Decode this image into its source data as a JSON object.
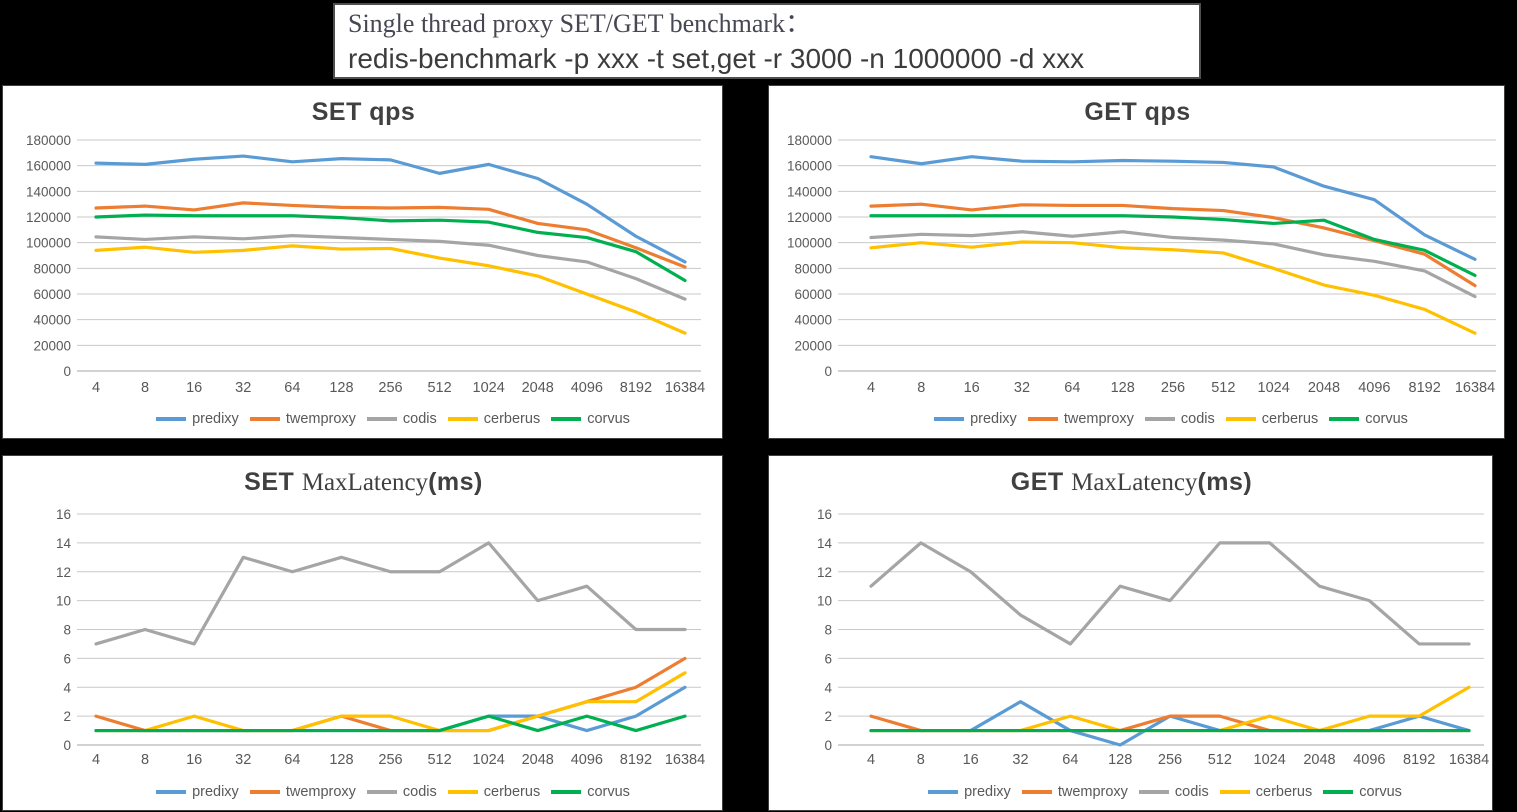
{
  "header": {
    "line1": "Single thread proxy SET/GET benchmark：",
    "line2": "redis-benchmark -p xxx -t set,get -r 3000 -n 1000000 -d xxx"
  },
  "colors": {
    "predixy": "#5B9BD5",
    "twemproxy": "#ED7D31",
    "codis": "#A5A5A5",
    "cerberus": "#FFC000",
    "corvus": "#00B050",
    "grid": "#C9C9C9",
    "axis": "#A6A6A6",
    "axis_text": "#595959",
    "title_text": "#404040"
  },
  "legend_labels": [
    "predixy",
    "twemproxy",
    "codis",
    "cerberus",
    "corvus"
  ],
  "categories": [
    "4",
    "8",
    "16",
    "32",
    "64",
    "128",
    "256",
    "512",
    "1024",
    "2048",
    "4096",
    "8192",
    "16384"
  ],
  "chart_data": [
    {
      "id": "set-qps",
      "type": "line",
      "title_parts": [
        {
          "text": "SET  qps",
          "font": "sans-bold"
        }
      ],
      "xlabel": "",
      "ylabel": "",
      "ylim": [
        0,
        180000
      ],
      "ytick": 20000,
      "grid": true,
      "legend_position": "bottom",
      "categories": [
        "4",
        "8",
        "16",
        "32",
        "64",
        "128",
        "256",
        "512",
        "1024",
        "2048",
        "4096",
        "8192",
        "16384"
      ],
      "series": [
        {
          "name": "predixy",
          "values": [
            162000,
            161000,
            165000,
            167500,
            163000,
            165500,
            164500,
            154000,
            161000,
            150000,
            130000,
            105000,
            85000
          ]
        },
        {
          "name": "twemproxy",
          "values": [
            127000,
            128500,
            125500,
            131000,
            129000,
            127500,
            127000,
            127500,
            126000,
            115000,
            110000,
            96000,
            81000
          ]
        },
        {
          "name": "codis",
          "values": [
            104500,
            102500,
            104500,
            103000,
            105500,
            104000,
            102500,
            101000,
            98000,
            90000,
            85000,
            72000,
            56000
          ]
        },
        {
          "name": "cerberus",
          "values": [
            94000,
            96500,
            92500,
            94000,
            97500,
            95000,
            95500,
            88000,
            82000,
            74000,
            60000,
            46000,
            29500
          ]
        },
        {
          "name": "corvus",
          "values": [
            120000,
            121500,
            121000,
            121000,
            121000,
            119500,
            117000,
            117500,
            116000,
            108000,
            104000,
            93000,
            70500
          ]
        }
      ]
    },
    {
      "id": "get-qps",
      "type": "line",
      "title_parts": [
        {
          "text": "GET  qps",
          "font": "sans-bold"
        }
      ],
      "xlabel": "",
      "ylabel": "",
      "ylim": [
        0,
        180000
      ],
      "ytick": 20000,
      "grid": true,
      "legend_position": "bottom",
      "categories": [
        "4",
        "8",
        "16",
        "32",
        "64",
        "128",
        "256",
        "512",
        "1024",
        "2048",
        "4096",
        "8192",
        "16384"
      ],
      "series": [
        {
          "name": "predixy",
          "values": [
            167000,
            161500,
            167000,
            163500,
            163000,
            164000,
            163500,
            162500,
            159000,
            144000,
            133500,
            106000,
            87000
          ]
        },
        {
          "name": "twemproxy",
          "values": [
            128500,
            130000,
            125500,
            129500,
            129000,
            129000,
            126500,
            125000,
            119500,
            111500,
            101500,
            91000,
            66500
          ]
        },
        {
          "name": "codis",
          "values": [
            104000,
            106500,
            105500,
            108500,
            105000,
            108500,
            104000,
            102000,
            99000,
            90500,
            85500,
            78000,
            58000
          ]
        },
        {
          "name": "cerberus",
          "values": [
            96000,
            100000,
            96500,
            100500,
            100000,
            96000,
            94500,
            92000,
            80000,
            67000,
            59000,
            48000,
            29500
          ]
        },
        {
          "name": "corvus",
          "values": [
            121000,
            121000,
            121000,
            121000,
            121000,
            121000,
            120000,
            118000,
            115000,
            117500,
            102500,
            94000,
            74500
          ]
        }
      ]
    },
    {
      "id": "set-latency",
      "type": "line",
      "title_parts": [
        {
          "text": "SET ",
          "font": "sans-bold"
        },
        {
          "text": "MaxLatency",
          "font": "serif"
        },
        {
          "text": "(ms)",
          "font": "sans-bold"
        }
      ],
      "xlabel": "",
      "ylabel": "",
      "ylim": [
        0,
        16
      ],
      "ytick": 2,
      "grid": true,
      "legend_position": "bottom",
      "categories": [
        "4",
        "8",
        "16",
        "32",
        "64",
        "128",
        "256",
        "512",
        "1024",
        "2048",
        "4096",
        "8192",
        "16384"
      ],
      "series": [
        {
          "name": "predixy",
          "values": [
            1,
            1,
            1,
            1,
            1,
            1,
            1,
            1,
            2,
            2,
            1,
            2,
            4
          ]
        },
        {
          "name": "twemproxy",
          "values": [
            2,
            1,
            1,
            1,
            1,
            2,
            1,
            1,
            1,
            2,
            3,
            4,
            6
          ]
        },
        {
          "name": "codis",
          "values": [
            7,
            8,
            7,
            13,
            12,
            13,
            12,
            12,
            14,
            10,
            11,
            8,
            8
          ]
        },
        {
          "name": "cerberus",
          "values": [
            1,
            1,
            2,
            1,
            1,
            2,
            2,
            1,
            1,
            2,
            3,
            3,
            5
          ]
        },
        {
          "name": "corvus",
          "values": [
            1,
            1,
            1,
            1,
            1,
            1,
            1,
            1,
            2,
            1,
            2,
            1,
            2
          ]
        }
      ]
    },
    {
      "id": "get-latency",
      "type": "line",
      "title_parts": [
        {
          "text": "GET ",
          "font": "sans-bold"
        },
        {
          "text": "MaxLatency",
          "font": "serif"
        },
        {
          "text": "(ms)",
          "font": "sans-bold"
        }
      ],
      "xlabel": "",
      "ylabel": "",
      "ylim": [
        0,
        16
      ],
      "ytick": 2,
      "grid": true,
      "legend_position": "bottom",
      "categories": [
        "4",
        "8",
        "16",
        "32",
        "64",
        "128",
        "256",
        "512",
        "1024",
        "2048",
        "4096",
        "8192",
        "16384"
      ],
      "series": [
        {
          "name": "predixy",
          "values": [
            1,
            1,
            1,
            3,
            1,
            0,
            2,
            1,
            1,
            1,
            1,
            2,
            1
          ]
        },
        {
          "name": "twemproxy",
          "values": [
            2,
            1,
            1,
            1,
            1,
            1,
            2,
            2,
            1,
            1,
            1,
            1,
            1
          ]
        },
        {
          "name": "codis",
          "values": [
            11,
            14,
            12,
            9,
            7,
            11,
            10,
            14,
            14,
            11,
            10,
            7,
            7
          ]
        },
        {
          "name": "cerberus",
          "values": [
            1,
            1,
            1,
            1,
            2,
            1,
            1,
            1,
            2,
            1,
            2,
            2,
            4
          ]
        },
        {
          "name": "corvus",
          "values": [
            1,
            1,
            1,
            1,
            1,
            1,
            1,
            1,
            1,
            1,
            1,
            1,
            1
          ]
        }
      ]
    }
  ]
}
